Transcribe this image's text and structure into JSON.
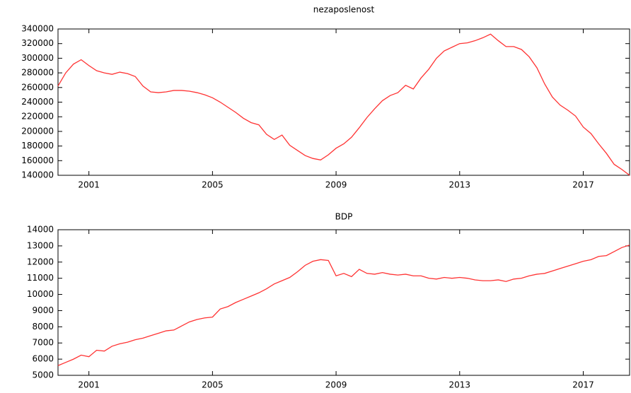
{
  "chart_data": [
    {
      "type": "line",
      "title": "nezaposlenost",
      "color": "#ff3333",
      "x": [
        2000,
        2000.25,
        2000.5,
        2000.75,
        2001,
        2001.25,
        2001.5,
        2001.75,
        2002,
        2002.25,
        2002.5,
        2002.75,
        2003,
        2003.25,
        2003.5,
        2003.75,
        2004,
        2004.25,
        2004.5,
        2004.75,
        2005,
        2005.25,
        2005.5,
        2005.75,
        2006,
        2006.25,
        2006.5,
        2006.75,
        2007,
        2007.25,
        2007.5,
        2007.75,
        2008,
        2008.25,
        2008.5,
        2008.75,
        2009,
        2009.25,
        2009.5,
        2009.75,
        2010,
        2010.25,
        2010.5,
        2010.75,
        2011,
        2011.25,
        2011.5,
        2011.75,
        2012,
        2012.25,
        2012.5,
        2012.75,
        2013,
        2013.25,
        2013.5,
        2013.75,
        2014,
        2014.25,
        2014.5,
        2014.75,
        2015,
        2015.25,
        2015.5,
        2015.75,
        2016,
        2016.25,
        2016.5,
        2016.75,
        2017,
        2017.25,
        2017.5,
        2017.75,
        2018,
        2018.25,
        2018.5
      ],
      "values": [
        262000,
        280000,
        292000,
        298000,
        290000,
        283000,
        280000,
        278000,
        281000,
        279000,
        275000,
        262000,
        254000,
        253000,
        254000,
        256000,
        256000,
        255000,
        253000,
        250000,
        246000,
        240000,
        233000,
        226000,
        218000,
        212000,
        209000,
        196000,
        189000,
        195000,
        181000,
        174000,
        167000,
        163000,
        161000,
        168000,
        177000,
        183000,
        192000,
        205000,
        219000,
        231000,
        242000,
        249000,
        253000,
        263000,
        258000,
        273000,
        285000,
        300000,
        310000,
        315000,
        320000,
        321000,
        324000,
        328000,
        333000,
        324000,
        316000,
        316000,
        312000,
        302000,
        287000,
        265000,
        247000,
        236000,
        229000,
        221000,
        206000,
        197000,
        183000,
        170000,
        155000,
        148000,
        140000
      ],
      "xlim": [
        2000,
        2018.5
      ],
      "xticks": [
        2001,
        2005,
        2009,
        2013,
        2017
      ],
      "ylim": [
        140000,
        340000
      ],
      "yticks": [
        140000,
        160000,
        180000,
        200000,
        220000,
        240000,
        260000,
        280000,
        300000,
        320000,
        340000
      ]
    },
    {
      "type": "line",
      "title": "BDP",
      "color": "#ff3333",
      "x": [
        2000,
        2000.25,
        2000.5,
        2000.75,
        2001,
        2001.25,
        2001.5,
        2001.75,
        2002,
        2002.25,
        2002.5,
        2002.75,
        2003,
        2003.25,
        2003.5,
        2003.75,
        2004,
        2004.25,
        2004.5,
        2004.75,
        2005,
        2005.25,
        2005.5,
        2005.75,
        2006,
        2006.25,
        2006.5,
        2006.75,
        2007,
        2007.25,
        2007.5,
        2007.75,
        2008,
        2008.25,
        2008.5,
        2008.75,
        2009,
        2009.25,
        2009.5,
        2009.75,
        2010,
        2010.25,
        2010.5,
        2010.75,
        2011,
        2011.25,
        2011.5,
        2011.75,
        2012,
        2012.25,
        2012.5,
        2012.75,
        2013,
        2013.25,
        2013.5,
        2013.75,
        2014,
        2014.25,
        2014.5,
        2014.75,
        2015,
        2015.25,
        2015.5,
        2015.75,
        2016,
        2016.25,
        2016.5,
        2016.75,
        2017,
        2017.25,
        2017.5,
        2017.75,
        2018,
        2018.25,
        2018.5
      ],
      "values": [
        5600,
        5800,
        6000,
        6250,
        6150,
        6550,
        6500,
        6800,
        6950,
        7050,
        7200,
        7300,
        7450,
        7600,
        7750,
        7800,
        8050,
        8300,
        8450,
        8550,
        8600,
        9100,
        9250,
        9500,
        9700,
        9900,
        10100,
        10350,
        10650,
        10850,
        11050,
        11400,
        11800,
        12050,
        12150,
        12100,
        11150,
        11300,
        11100,
        11550,
        11300,
        11250,
        11350,
        11250,
        11200,
        11250,
        11150,
        11150,
        11000,
        10950,
        11050,
        11000,
        11050,
        11000,
        10900,
        10850,
        10850,
        10900,
        10800,
        10950,
        11000,
        11150,
        11250,
        11300,
        11450,
        11600,
        11750,
        11900,
        12050,
        12150,
        12350,
        12400,
        12650,
        12900,
        13050
      ],
      "xlim": [
        2000,
        2018.5
      ],
      "xticks": [
        2001,
        2005,
        2009,
        2013,
        2017
      ],
      "ylim": [
        5000,
        14000
      ],
      "yticks": [
        5000,
        6000,
        7000,
        8000,
        9000,
        10000,
        11000,
        12000,
        13000,
        14000
      ]
    }
  ]
}
